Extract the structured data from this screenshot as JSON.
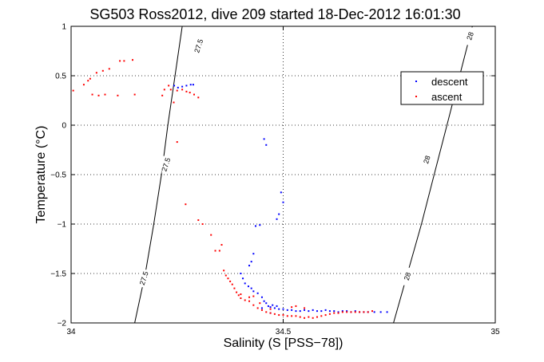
{
  "chart_data": {
    "type": "scatter",
    "title": "SG503 Ross2012, dive 209 started 18-Dec-2012 16:01:30",
    "xlabel": "Salinity (S [PSS−78])",
    "ylabel": "Temperature (°C)",
    "xlim": [
      34,
      35
    ],
    "ylim": [
      -2,
      1
    ],
    "xticks": [
      34,
      34.5,
      35
    ],
    "xtick_labels": [
      "34",
      "34.5",
      "35"
    ],
    "yticks": [
      -2,
      -1.5,
      -1,
      -0.5,
      0,
      0.5,
      1
    ],
    "ytick_labels": [
      "−2",
      "−1.5",
      "−1",
      "−0.5",
      "0",
      "0.5",
      "1"
    ],
    "grid": true,
    "legend_position": "top-right",
    "series": [
      {
        "name": "descent",
        "color": "#0000ff",
        "points": [
          [
            34.243,
            0.4
          ],
          [
            34.252,
            0.38
          ],
          [
            34.262,
            0.39
          ],
          [
            34.272,
            0.4
          ],
          [
            34.282,
            0.41
          ],
          [
            34.288,
            0.41
          ],
          [
            34.455,
            -0.14
          ],
          [
            34.46,
            -0.2
          ],
          [
            34.49,
            -0.9
          ],
          [
            34.485,
            -0.95
          ],
          [
            34.5,
            -0.78
          ],
          [
            34.495,
            -0.68
          ],
          [
            34.435,
            -1.02
          ],
          [
            34.445,
            -1.01
          ],
          [
            34.43,
            -1.3
          ],
          [
            34.425,
            -1.38
          ],
          [
            34.42,
            -1.42
          ],
          [
            34.4,
            -1.5
          ],
          [
            34.405,
            -1.55
          ],
          [
            34.41,
            -1.6
          ],
          [
            34.418,
            -1.63
          ],
          [
            34.425,
            -1.65
          ],
          [
            34.43,
            -1.68
          ],
          [
            34.44,
            -1.7
          ],
          [
            34.45,
            -1.74
          ],
          [
            34.455,
            -1.78
          ],
          [
            34.46,
            -1.8
          ],
          [
            34.465,
            -1.83
          ],
          [
            34.47,
            -1.84
          ],
          [
            34.48,
            -1.85
          ],
          [
            34.49,
            -1.86
          ],
          [
            34.5,
            -1.86
          ],
          [
            34.51,
            -1.87
          ],
          [
            34.52,
            -1.87
          ],
          [
            34.53,
            -1.88
          ],
          [
            34.54,
            -1.88
          ],
          [
            34.55,
            -1.87
          ],
          [
            34.56,
            -1.88
          ],
          [
            34.57,
            -1.87
          ],
          [
            34.58,
            -1.88
          ],
          [
            34.59,
            -1.88
          ],
          [
            34.6,
            -1.87
          ],
          [
            34.61,
            -1.88
          ],
          [
            34.62,
            -1.88
          ],
          [
            34.63,
            -1.89
          ],
          [
            34.64,
            -1.88
          ],
          [
            34.65,
            -1.88
          ],
          [
            34.66,
            -1.89
          ],
          [
            34.67,
            -1.88
          ],
          [
            34.68,
            -1.89
          ],
          [
            34.69,
            -1.89
          ],
          [
            34.7,
            -1.89
          ],
          [
            34.715,
            -1.89
          ],
          [
            34.73,
            -1.89
          ],
          [
            34.745,
            -1.89
          ],
          [
            34.45,
            -1.85
          ],
          [
            34.47,
            -1.9
          ],
          [
            34.475,
            -1.82
          ],
          [
            34.485,
            -1.83
          ]
        ]
      },
      {
        "name": "ascent",
        "color": "#ff0000",
        "points": [
          [
            34.005,
            0.35
          ],
          [
            34.03,
            0.41
          ],
          [
            34.04,
            0.45
          ],
          [
            34.06,
            0.53
          ],
          [
            34.045,
            0.47
          ],
          [
            34.075,
            0.55
          ],
          [
            34.09,
            0.57
          ],
          [
            34.05,
            0.31
          ],
          [
            34.065,
            0.3
          ],
          [
            34.08,
            0.31
          ],
          [
            34.11,
            0.3
          ],
          [
            34.115,
            0.65
          ],
          [
            34.125,
            0.65
          ],
          [
            34.145,
            0.66
          ],
          [
            34.15,
            0.31
          ],
          [
            34.215,
            0.3
          ],
          [
            34.22,
            0.36
          ],
          [
            34.23,
            0.4
          ],
          [
            34.235,
            0.36
          ],
          [
            34.242,
            0.23
          ],
          [
            34.25,
            -0.17
          ],
          [
            34.25,
            0.35
          ],
          [
            34.262,
            0.36
          ],
          [
            34.272,
            0.34
          ],
          [
            34.28,
            0.33
          ],
          [
            34.29,
            0.31
          ],
          [
            34.3,
            0.28
          ],
          [
            34.27,
            -0.8
          ],
          [
            34.3,
            -0.96
          ],
          [
            34.31,
            -1.0
          ],
          [
            34.33,
            -1.11
          ],
          [
            34.34,
            -1.27
          ],
          [
            34.35,
            -1.27
          ],
          [
            34.355,
            -1.21
          ],
          [
            34.36,
            -1.47
          ],
          [
            34.365,
            -1.52
          ],
          [
            34.37,
            -1.55
          ],
          [
            34.375,
            -1.58
          ],
          [
            34.38,
            -1.61
          ],
          [
            34.385,
            -1.65
          ],
          [
            34.39,
            -1.69
          ],
          [
            34.395,
            -1.72
          ],
          [
            34.4,
            -1.75
          ],
          [
            34.41,
            -1.77
          ],
          [
            34.42,
            -1.78
          ],
          [
            34.43,
            -1.82
          ],
          [
            34.44,
            -1.85
          ],
          [
            34.45,
            -1.87
          ],
          [
            34.46,
            -1.89
          ],
          [
            34.47,
            -1.9
          ],
          [
            34.48,
            -1.91
          ],
          [
            34.49,
            -1.92
          ],
          [
            34.5,
            -1.92
          ],
          [
            34.51,
            -1.93
          ],
          [
            34.52,
            -1.93
          ],
          [
            34.53,
            -1.93
          ],
          [
            34.54,
            -1.94
          ],
          [
            34.55,
            -1.95
          ],
          [
            34.56,
            -1.94
          ],
          [
            34.57,
            -1.95
          ],
          [
            34.58,
            -1.94
          ],
          [
            34.59,
            -1.93
          ],
          [
            34.6,
            -1.92
          ],
          [
            34.61,
            -1.91
          ],
          [
            34.62,
            -1.9
          ],
          [
            34.63,
            -1.9
          ],
          [
            34.64,
            -1.89
          ],
          [
            34.65,
            -1.89
          ],
          [
            34.66,
            -1.89
          ],
          [
            34.67,
            -1.89
          ],
          [
            34.68,
            -1.89
          ],
          [
            34.69,
            -1.89
          ],
          [
            34.7,
            -1.89
          ],
          [
            34.71,
            -1.88
          ],
          [
            34.52,
            -1.84
          ],
          [
            34.53,
            -1.83
          ],
          [
            34.55,
            -1.85
          ],
          [
            34.4,
            -1.71
          ],
          [
            34.42,
            -1.74
          ],
          [
            34.43,
            -1.73
          ],
          [
            34.445,
            -1.8
          ],
          [
            34.47,
            -1.86
          ]
        ]
      }
    ],
    "contours": [
      {
        "label": "27.5",
        "color": "#000000",
        "points": [
          [
            34.15,
            -2
          ],
          [
            34.175,
            -1.5
          ],
          [
            34.195,
            -1
          ],
          [
            34.213,
            -0.5
          ],
          [
            34.228,
            0
          ],
          [
            34.245,
            0.5
          ],
          [
            34.262,
            1
          ]
        ],
        "label_positions": [
          [
            34.173,
            -1.55
          ],
          [
            34.225,
            -0.4
          ],
          [
            34.302,
            0.8
          ]
        ]
      },
      {
        "label": "28",
        "color": "#000000",
        "points": [
          [
            34.76,
            -2
          ],
          [
            34.793,
            -1.5
          ],
          [
            34.826,
            -1
          ],
          [
            34.856,
            -0.5
          ],
          [
            34.886,
            0
          ],
          [
            34.916,
            0.5
          ],
          [
            34.946,
            1
          ]
        ],
        "label_positions": [
          [
            34.794,
            -1.53
          ],
          [
            34.84,
            -0.35
          ],
          [
            34.942,
            0.9
          ]
        ]
      }
    ],
    "legend": {
      "entries": [
        "descent",
        "ascent"
      ]
    }
  }
}
